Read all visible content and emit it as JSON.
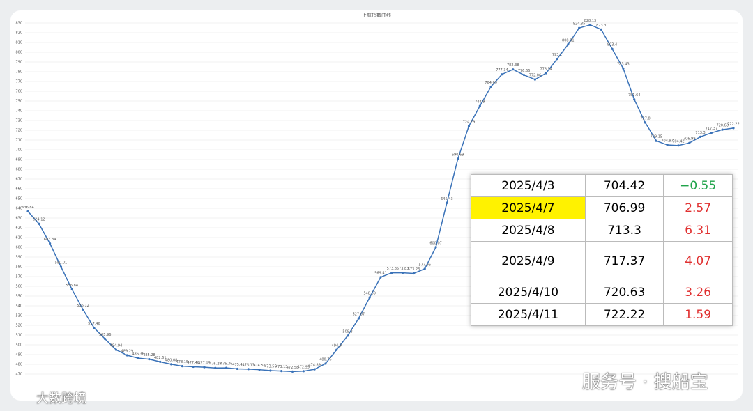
{
  "chart_data": {
    "type": "line",
    "title": "上航指数曲线",
    "color": "#3a72b8",
    "categories": [
      null,
      null,
      null,
      null,
      null,
      null,
      null,
      null,
      null,
      null,
      null,
      null,
      null,
      null,
      null,
      null,
      null,
      null,
      null,
      null,
      null,
      null,
      null,
      null,
      null,
      null,
      null,
      null,
      null,
      null,
      null,
      null,
      null,
      null,
      null,
      null,
      null,
      null,
      null,
      null,
      null,
      null,
      null,
      null,
      null,
      null,
      null,
      null,
      null,
      null,
      null,
      null,
      null,
      null,
      null,
      null,
      null,
      null,
      null,
      null,
      null,
      null,
      null,
      null,
      null
    ],
    "values": [
      636.84,
      624.12,
      603.84,
      580.01,
      556.84,
      536.12,
      517.46,
      505.96,
      494.94,
      489.29,
      486.36,
      485.28,
      482.61,
      480.08,
      478.15,
      477.46,
      477.05,
      476.29,
      476.36,
      475.4,
      475.13,
      474.51,
      473.56,
      473.13,
      472.58,
      472.99,
      474.89,
      480.75,
      494.9,
      509.3,
      527.07,
      548.59,
      569.41,
      573.8,
      573.83,
      573.23,
      577.96,
      600.07,
      645.43,
      690.69,
      724.29,
      744.9,
      764.69,
      777.34,
      782.38,
      776.66,
      772.06,
      778.54,
      793.1,
      808.01,
      824.85,
      828.13,
      823.3,
      803.4,
      783.43,
      751.64,
      727.8,
      709.15,
      704.97,
      704.42,
      706.99,
      713.3,
      717.37,
      720.63,
      722.22
    ],
    "ylim": [
      470,
      830
    ],
    "yticks": [
      470,
      480,
      490,
      500,
      510,
      520,
      530,
      540,
      550,
      560,
      570,
      580,
      590,
      600,
      610,
      620,
      630,
      640,
      650,
      660,
      670,
      680,
      690,
      700,
      710,
      720,
      730,
      740,
      750,
      760,
      770,
      780,
      790,
      800,
      810,
      820,
      830
    ],
    "grid": true
  },
  "table": {
    "rows": [
      [
        "2025/4/3",
        "704.42",
        "−0.55"
      ],
      [
        "2025/4/7",
        "706.99",
        "2.57"
      ],
      [
        "2025/4/8",
        "713.3",
        "6.31"
      ],
      [
        "2025/4/9",
        "717.37",
        "4.07"
      ],
      [
        "2025/4/10",
        "720.63",
        "3.26"
      ],
      [
        "2025/4/11",
        "722.22",
        "1.59"
      ]
    ],
    "change_colors": [
      "#1fa34a",
      "#e03030",
      "#e03030",
      "#e03030",
      "#e03030",
      "#e03030"
    ],
    "highlight_row": 1,
    "highlight_color": "#fff200"
  },
  "watermarks": [
    "服务号 · 搜船宝",
    "大数跨境"
  ]
}
